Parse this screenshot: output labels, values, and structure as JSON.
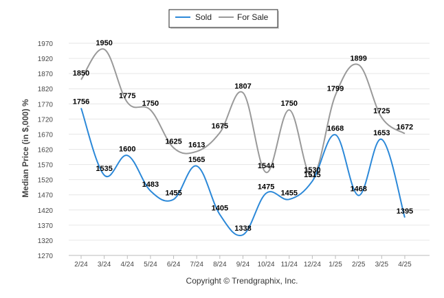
{
  "chart_data": {
    "type": "line",
    "categories": [
      "2/24",
      "3/24",
      "4/24",
      "5/24",
      "6/24",
      "7/24",
      "8/24",
      "9/24",
      "10/24",
      "11/24",
      "12/24",
      "1/25",
      "2/25",
      "3/25",
      "4/25"
    ],
    "series": [
      {
        "name": "Sold",
        "color": "#2b88d8",
        "values": [
          1756,
          1535,
          1600,
          1483,
          1455,
          1565,
          1405,
          1338,
          1475,
          1455,
          1515,
          1668,
          1468,
          1653,
          1395
        ]
      },
      {
        "name": "For Sale",
        "color": "#999999",
        "values": [
          1850,
          1950,
          1775,
          1750,
          1625,
          1613,
          1675,
          1807,
          1544,
          1750,
          1530,
          1799,
          1899,
          1725,
          1672
        ]
      }
    ],
    "ylabel": "Median Price (in $,000) %",
    "ylim": [
      1270,
      1970
    ],
    "yticks": [
      1270,
      1320,
      1370,
      1420,
      1470,
      1520,
      1570,
      1620,
      1670,
      1720,
      1770,
      1820,
      1870,
      1920,
      1970
    ],
    "grid": true,
    "legend": "top-center"
  },
  "credit": "Copyright © Trendgraphix, Inc."
}
